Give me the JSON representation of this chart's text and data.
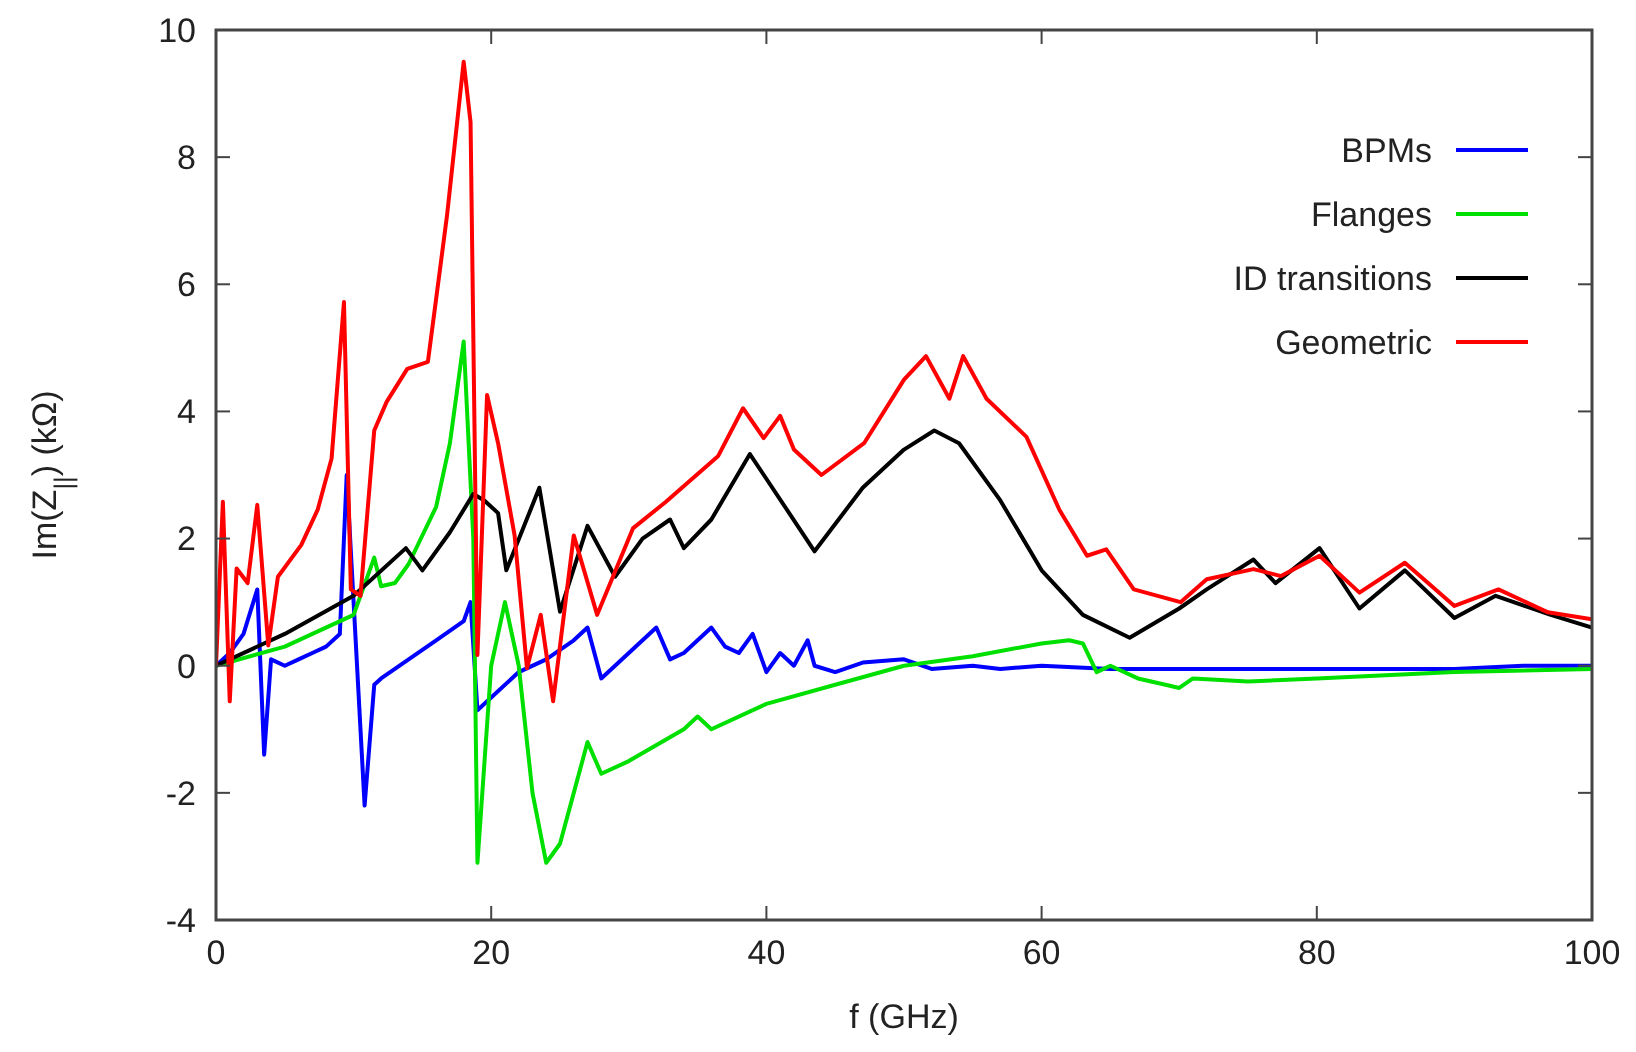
{
  "chart_data": {
    "type": "line",
    "xlabel": "f (GHz)",
    "ylabel": "Im(Z$_{||}$) (kΩ)",
    "xlim": [
      0,
      100
    ],
    "ylim": [
      -4,
      10
    ],
    "xticks": [
      0,
      20,
      40,
      60,
      80,
      100
    ],
    "yticks": [
      -4,
      -2,
      0,
      2,
      4,
      6,
      8,
      10
    ],
    "grid": false,
    "legend": "top right",
    "marker": "none",
    "line_style": "solid",
    "series": [
      {
        "name": "BPMs",
        "color": "#0000ff",
        "x": [
          0,
          1,
          2,
          3,
          3.5,
          4,
          5,
          6,
          7,
          8,
          9,
          9.5,
          10,
          10.8,
          11.5,
          12,
          14,
          16,
          18,
          18.5,
          19,
          20,
          22,
          24,
          26,
          27,
          28,
          30,
          32,
          33,
          34,
          36,
          37,
          38,
          39,
          40,
          41,
          42,
          43,
          43.5,
          45,
          47,
          50,
          52,
          55,
          57,
          60,
          65,
          70,
          80,
          90,
          95,
          100
        ],
        "values": [
          0,
          0.2,
          0.5,
          1.2,
          -1.4,
          0.1,
          0,
          0.1,
          0.2,
          0.3,
          0.5,
          3.0,
          1.0,
          -2.2,
          -0.3,
          -0.2,
          0.1,
          0.4,
          0.7,
          1.0,
          -0.7,
          -0.5,
          -0.1,
          0.1,
          0.4,
          0.6,
          -0.2,
          0.2,
          0.6,
          0.1,
          0.2,
          0.6,
          0.3,
          0.2,
          0.5,
          -0.1,
          0.2,
          0,
          0.4,
          0,
          -0.1,
          0.05,
          0.1,
          -0.05,
          0,
          -0.05,
          0,
          -0.05,
          -0.05,
          -0.05,
          -0.05,
          0,
          0
        ]
      },
      {
        "name": "Flanges",
        "color": "#00e000",
        "x": [
          0,
          5,
          10,
          11.5,
          12,
          13,
          14,
          16,
          17,
          18,
          18.7,
          19,
          20,
          21,
          22,
          23,
          24,
          25,
          26,
          27,
          28,
          30,
          34,
          35,
          36,
          40,
          45,
          50,
          55,
          60,
          62,
          63,
          64,
          65,
          67,
          69,
          70,
          71,
          75,
          80,
          85,
          90,
          100
        ],
        "values": [
          0,
          0.3,
          0.8,
          1.7,
          1.25,
          1.3,
          1.6,
          2.5,
          3.5,
          5.1,
          2.0,
          -3.1,
          0,
          1.0,
          0,
          -2.0,
          -3.1,
          -2.8,
          -2.0,
          -1.2,
          -1.7,
          -1.5,
          -1.0,
          -0.8,
          -1.0,
          -0.6,
          -0.3,
          0,
          0.15,
          0.35,
          0.4,
          0.35,
          -0.1,
          0,
          -0.2,
          -0.3,
          -0.35,
          -0.2,
          -0.25,
          -0.2,
          -0.15,
          -0.1,
          -0.05
        ]
      },
      {
        "name": "ID transitions",
        "color": "#000000",
        "x": [
          0,
          5,
          10,
          13.8,
          15,
          17,
          18.7,
          19.5,
          20.5,
          21.1,
          23.5,
          25,
          27,
          29,
          31,
          33,
          34,
          36,
          38.8,
          43.5,
          47,
          50,
          52.2,
          54,
          57,
          60,
          63,
          66.4,
          70,
          72,
          75.4,
          77,
          80.2,
          83.1,
          86.4,
          90,
          93,
          97,
          100
        ],
        "values": [
          0,
          0.5,
          1.1,
          1.85,
          1.5,
          2.1,
          2.7,
          2.6,
          2.4,
          1.5,
          2.8,
          0.85,
          2.2,
          1.4,
          2.0,
          2.3,
          1.85,
          2.3,
          3.33,
          1.8,
          2.8,
          3.4,
          3.7,
          3.5,
          2.6,
          1.5,
          0.8,
          0.44,
          0.9,
          1.2,
          1.67,
          1.3,
          1.85,
          0.9,
          1.5,
          0.75,
          1.1,
          0.8,
          0.6
        ]
      },
      {
        "name": "Geometric",
        "color": "#ff0000",
        "x": [
          0,
          0.5,
          1,
          1.5,
          2.3,
          3,
          3.8,
          4.5,
          6.2,
          7.4,
          8.4,
          9.3,
          9.8,
          10.5,
          11.5,
          12.4,
          13.9,
          15.4,
          16.8,
          18,
          18.5,
          19,
          19.7,
          20.5,
          21.7,
          22.6,
          23.6,
          24.5,
          26,
          27.7,
          30.3,
          32.7,
          36.5,
          38.3,
          39.8,
          41,
          42,
          44,
          47.1,
          50,
          51.6,
          53.3,
          54.3,
          56,
          58.9,
          61.3,
          63.3,
          64.7,
          66.7,
          70.1,
          72,
          75.4,
          77.4,
          80.2,
          83.1,
          86.4,
          90,
          93.2,
          96.8,
          100
        ],
        "values": [
          0,
          2.58,
          -0.56,
          1.53,
          1.3,
          2.53,
          0.32,
          1.4,
          1.9,
          2.46,
          3.26,
          5.72,
          1.2,
          1.1,
          3.7,
          4.15,
          4.67,
          4.78,
          7.1,
          9.5,
          8.55,
          0.17,
          4.26,
          3.5,
          2.05,
          -0.04,
          0.8,
          -0.56,
          2.05,
          0.8,
          2.16,
          2.58,
          3.3,
          4.05,
          3.58,
          3.93,
          3.4,
          3.0,
          3.5,
          4.5,
          4.87,
          4.2,
          4.87,
          4.2,
          3.6,
          2.45,
          1.73,
          1.83,
          1.2,
          1.0,
          1.36,
          1.52,
          1.41,
          1.73,
          1.15,
          1.62,
          0.94,
          1.2,
          0.84,
          0.73
        ]
      }
    ]
  }
}
